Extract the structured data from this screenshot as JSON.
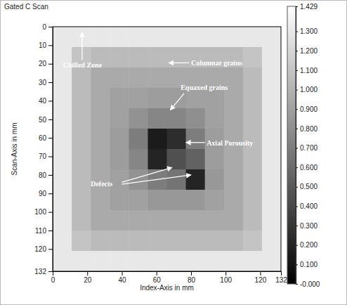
{
  "chart_data": {
    "type": "heatmap",
    "title": "Gated C Scan",
    "x_label": "Index-Axis in mm",
    "y_label": "Scan-Axis in mm",
    "xlim": [
      0,
      132
    ],
    "ylim": [
      0,
      132
    ],
    "xticks": [
      0,
      20,
      40,
      60,
      80,
      100,
      120,
      132
    ],
    "yticks": [
      0,
      10,
      20,
      30,
      40,
      50,
      60,
      70,
      80,
      90,
      100,
      110,
      120,
      132
    ],
    "cells": [
      [
        1.3,
        1.3,
        1.3,
        1.3,
        1.3,
        1.3,
        1.3,
        1.3,
        1.3,
        1.3,
        1.3,
        1.3
      ],
      [
        1.3,
        1.1,
        1.05,
        1.05,
        1.05,
        1.05,
        1.05,
        1.05,
        1.05,
        1.05,
        1.1,
        1.3
      ],
      [
        1.3,
        1.05,
        0.95,
        0.95,
        0.95,
        0.95,
        0.95,
        0.95,
        0.95,
        0.95,
        1.05,
        1.3
      ],
      [
        1.3,
        1.05,
        0.95,
        0.9,
        0.9,
        0.88,
        0.88,
        0.9,
        0.9,
        0.95,
        1.05,
        1.3
      ],
      [
        1.3,
        1.05,
        0.95,
        0.9,
        0.82,
        0.75,
        0.75,
        0.8,
        0.9,
        0.95,
        1.05,
        1.3
      ],
      [
        1.3,
        1.05,
        0.95,
        0.88,
        0.7,
        0.15,
        0.25,
        0.7,
        0.88,
        0.95,
        1.05,
        1.3
      ],
      [
        1.3,
        1.05,
        0.95,
        0.88,
        0.75,
        0.2,
        0.45,
        0.55,
        0.88,
        0.95,
        1.05,
        1.3
      ],
      [
        1.3,
        1.05,
        0.95,
        0.9,
        0.82,
        0.7,
        0.65,
        0.2,
        0.85,
        0.95,
        1.05,
        1.3
      ],
      [
        1.3,
        1.05,
        0.95,
        0.9,
        0.9,
        0.85,
        0.85,
        0.85,
        0.9,
        0.95,
        1.05,
        1.3
      ],
      [
        1.3,
        1.05,
        0.95,
        0.95,
        0.95,
        0.95,
        0.95,
        0.95,
        0.95,
        0.95,
        1.05,
        1.3
      ],
      [
        1.3,
        1.1,
        1.05,
        1.05,
        1.05,
        1.05,
        1.05,
        1.05,
        1.05,
        1.05,
        1.1,
        1.3
      ],
      [
        1.3,
        1.3,
        1.3,
        1.3,
        1.3,
        1.3,
        1.3,
        1.3,
        1.3,
        1.3,
        1.3,
        1.3
      ]
    ],
    "color_range": [
      0,
      1.429
    ],
    "color_ticks": [
      {
        "value": 1.429,
        "label": "1.429"
      },
      {
        "value": 1.3,
        "label": "1.300"
      },
      {
        "value": 1.2,
        "label": "1.200"
      },
      {
        "value": 1.1,
        "label": "1.100"
      },
      {
        "value": 1.0,
        "label": "1.000"
      },
      {
        "value": 0.9,
        "label": "0.900"
      },
      {
        "value": 0.8,
        "label": "0.800"
      },
      {
        "value": 0.7,
        "label": "0.700"
      },
      {
        "value": 0.6,
        "label": "0.600"
      },
      {
        "value": 0.5,
        "label": "0.500"
      },
      {
        "value": 0.4,
        "label": "0.400"
      },
      {
        "value": 0.3,
        "label": "0.300"
      },
      {
        "value": 0.2,
        "label": "0.200"
      },
      {
        "value": 0.1,
        "label": "0.100"
      },
      {
        "value": 0,
        "label": "-0.000"
      }
    ],
    "annotations": [
      "Chilled Zone",
      "Columnar grains",
      "Equaxed grains",
      "Axial Porousity",
      "Defects"
    ]
  }
}
